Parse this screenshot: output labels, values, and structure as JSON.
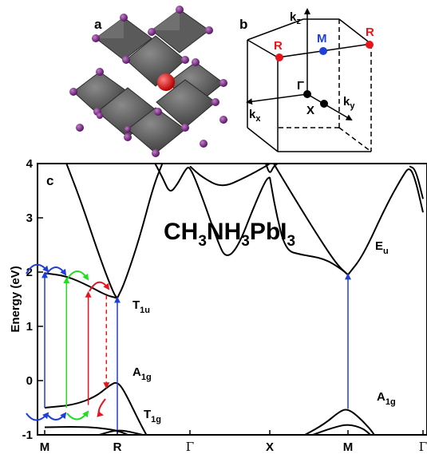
{
  "panel_a": {
    "letter": "a"
  },
  "panel_b": {
    "letter": "b",
    "points": {
      "R1": "R",
      "M": "M",
      "R2": "R",
      "Gamma": "Γ",
      "X": "X"
    },
    "axes": {
      "kz": "k",
      "kz_sub": "z",
      "kx": "k",
      "kx_sub": "x",
      "ky": "k",
      "ky_sub": "y"
    },
    "colors": {
      "R": "#e8141c",
      "M": "#1f3fd6",
      "Gamma": "#000000",
      "X": "#000000"
    }
  },
  "panel_c": {
    "letter": "c",
    "formula": {
      "p1": "CH",
      "s1": "3",
      "p2": "NH",
      "s2": "3",
      "p3": "PbI",
      "s3": "3"
    },
    "band_labels": {
      "T1u": "T",
      "T1u_sub": "1u",
      "A1g_R": "A",
      "A1g_R_sub": "1g",
      "T1g": "T",
      "T1g_sub": "1g",
      "Eu": "E",
      "Eu_sub": "u",
      "A1g_M": "A",
      "A1g_M_sub": "1g"
    },
    "transition_colors": {
      "blue": "#1f3fd6",
      "green": "#22dd22",
      "red": "#e8141c"
    }
  },
  "chart_data": {
    "type": "line",
    "title": "",
    "xlabel": "",
    "ylabel": "Energy (eV)",
    "ylim": [
      -1,
      4
    ],
    "y_ticks": [
      "-1",
      "0",
      "1",
      "2",
      "3",
      "4"
    ],
    "x_ticks": [
      "M",
      "R",
      "Γ",
      "X",
      "M",
      "Γ"
    ],
    "x_tick_style": [
      "bold",
      "bold",
      "serif",
      "bold",
      "bold",
      "serif"
    ],
    "kpath_positions": [
      0,
      1,
      2,
      3,
      4,
      5
    ],
    "series": [
      {
        "style": "band",
        "points": [
          [
            0,
            1.98
          ],
          [
            0.3,
            1.93
          ],
          [
            0.6,
            1.75
          ],
          [
            0.85,
            1.57
          ],
          [
            1.0,
            1.52
          ]
        ]
      },
      {
        "style": "band",
        "points": [
          [
            1.0,
            1.52
          ],
          [
            1.1,
            1.8
          ],
          [
            1.3,
            2.6
          ],
          [
            1.5,
            3.6
          ],
          [
            1.62,
            4.0
          ]
        ]
      },
      {
        "style": "band",
        "points": [
          [
            0.3,
            4.0
          ],
          [
            0.5,
            3.3
          ],
          [
            0.75,
            2.3
          ],
          [
            0.95,
            1.6
          ],
          [
            1.0,
            1.52
          ]
        ]
      },
      {
        "style": "band",
        "points": [
          [
            0,
            -0.5
          ],
          [
            0.4,
            -0.45
          ],
          [
            0.7,
            -0.3
          ],
          [
            0.9,
            -0.08
          ],
          [
            1.0,
            -0.02
          ],
          [
            1.1,
            -0.2
          ],
          [
            1.3,
            -0.75
          ],
          [
            1.4,
            -1.0
          ]
        ]
      },
      {
        "style": "band",
        "points": [
          [
            0,
            -0.86
          ],
          [
            0.5,
            -0.85
          ],
          [
            0.8,
            -0.88
          ],
          [
            1.0,
            -0.92
          ],
          [
            1.15,
            -1.0
          ]
        ]
      },
      {
        "style": "band",
        "points": [
          [
            0.75,
            -1.0
          ],
          [
            0.95,
            -0.92
          ],
          [
            1.1,
            -0.92
          ],
          [
            1.35,
            -1.0
          ]
        ]
      },
      {
        "style": "band",
        "points": [
          [
            1.52,
            4.0
          ],
          [
            1.62,
            3.75
          ],
          [
            1.72,
            3.45
          ],
          [
            1.82,
            3.6
          ],
          [
            1.94,
            3.9
          ],
          [
            2.0,
            3.95
          ],
          [
            2.15,
            3.4
          ],
          [
            2.35,
            2.55
          ],
          [
            2.45,
            2.25
          ],
          [
            2.6,
            2.45
          ],
          [
            2.8,
            3.2
          ],
          [
            2.95,
            3.7
          ],
          [
            3.0,
            3.75
          ]
        ]
      },
      {
        "style": "band",
        "points": [
          [
            2.0,
            3.95
          ],
          [
            2.15,
            3.75
          ],
          [
            2.4,
            3.55
          ],
          [
            2.7,
            3.75
          ],
          [
            2.95,
            3.95
          ],
          [
            3.0,
            4.0
          ]
        ]
      },
      {
        "style": "band",
        "points": [
          [
            2.95,
            4.0
          ],
          [
            3.0,
            3.8
          ],
          [
            3.05,
            3.95
          ],
          [
            3.1,
            4.0
          ]
        ]
      },
      {
        "style": "band",
        "points": [
          [
            3.0,
            3.75
          ],
          [
            3.08,
            3.1
          ],
          [
            3.2,
            2.4
          ],
          [
            3.4,
            2.32
          ],
          [
            3.7,
            2.25
          ],
          [
            3.92,
            2.05
          ],
          [
            4.0,
            1.95
          ]
        ]
      },
      {
        "style": "band",
        "points": [
          [
            3.05,
            4.0
          ],
          [
            3.3,
            3.4
          ],
          [
            3.6,
            2.7
          ],
          [
            3.85,
            2.15
          ],
          [
            4.0,
            1.95
          ]
        ]
      },
      {
        "style": "band",
        "points": [
          [
            4.0,
            1.95
          ],
          [
            4.2,
            2.3
          ],
          [
            4.5,
            3.2
          ],
          [
            4.72,
            3.75
          ],
          [
            4.82,
            3.95
          ],
          [
            4.9,
            3.7
          ],
          [
            5.0,
            3.1
          ]
        ]
      },
      {
        "style": "band",
        "points": [
          [
            4.82,
            3.95
          ],
          [
            4.9,
            3.9
          ],
          [
            5.0,
            3.35
          ]
        ]
      },
      {
        "style": "band",
        "points": [
          [
            3.45,
            -1.0
          ],
          [
            3.7,
            -0.8
          ],
          [
            3.9,
            -0.56
          ],
          [
            4.0,
            -0.52
          ],
          [
            4.15,
            -0.68
          ],
          [
            4.3,
            -0.9
          ],
          [
            4.35,
            -1.0
          ]
        ]
      },
      {
        "style": "band",
        "points": [
          [
            3.55,
            -1.0
          ],
          [
            3.8,
            -0.87
          ],
          [
            4.0,
            -0.8
          ],
          [
            4.2,
            -0.88
          ],
          [
            4.3,
            -1.0
          ]
        ]
      }
    ],
    "transitions": [
      {
        "color": "blue",
        "from": [
          0.0,
          -0.5
        ],
        "to": [
          0.0,
          1.98
        ],
        "style": "solid"
      },
      {
        "color": "green",
        "from": [
          0.3,
          -0.5
        ],
        "to": [
          0.3,
          1.88
        ],
        "style": "solid"
      },
      {
        "color": "red",
        "from": [
          0.6,
          -0.45
        ],
        "to": [
          0.6,
          1.62
        ],
        "style": "solid"
      },
      {
        "color": "red",
        "from": [
          0.85,
          1.57
        ],
        "to": [
          0.85,
          -0.12
        ],
        "style": "dashed"
      },
      {
        "color": "blue",
        "from": [
          1.0,
          -0.92
        ],
        "to": [
          1.0,
          1.52
        ],
        "style": "solid"
      },
      {
        "color": "blue",
        "from": [
          4.0,
          -0.52
        ],
        "to": [
          4.0,
          1.95
        ],
        "style": "solid"
      }
    ]
  }
}
